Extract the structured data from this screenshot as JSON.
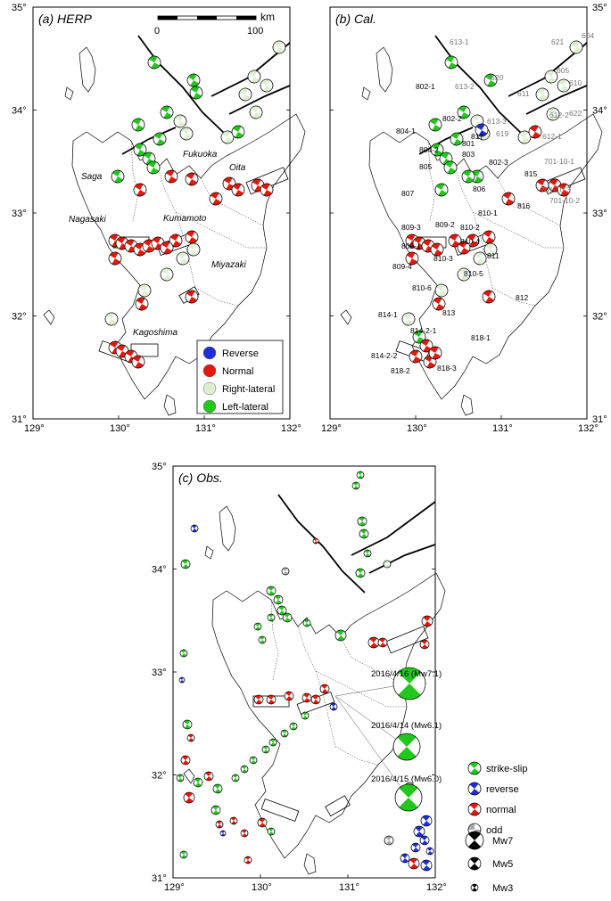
{
  "panels": {
    "a": {
      "title": "(a) HERP",
      "scale_bar": {
        "label_start": "0",
        "label_end": "100",
        "unit": "km"
      },
      "places": [
        "Fukuoka",
        "Oita",
        "Saga",
        "Nagasaki",
        "Kumamoto",
        "Miyazaki",
        "Kagoshima"
      ],
      "lat_labels": [
        "35°",
        "34°",
        "33°",
        "32°",
        "31°"
      ],
      "lon_labels": [
        "129°",
        "130°",
        "131°",
        "132°"
      ]
    },
    "b": {
      "title": "(b) Cal.",
      "lat_labels": [
        "35°",
        "34°",
        "33°",
        "32°",
        "31°"
      ],
      "lon_labels": [
        "129°",
        "130°",
        "131°",
        "132°"
      ],
      "event_ids_black": [
        "802-1",
        "802-2",
        "804-1",
        "804-2",
        "805",
        "803",
        "801",
        "817",
        "802-3",
        "806",
        "807",
        "815",
        "816",
        "809-3",
        "809-2",
        "810-2",
        "810-1",
        "809-1",
        "810-3",
        "810-4",
        "811",
        "809-4",
        "810-5",
        "810-6",
        "812",
        "813",
        "814-1",
        "814-2-1",
        "818-1",
        "814-2-2",
        "818-2",
        "818-3"
      ],
      "event_ids_grey": [
        "613-1",
        "621",
        "604",
        "613-2",
        "620",
        "605",
        "610",
        "611",
        "612-2",
        "622",
        "613-3",
        "619",
        "612-1",
        "701-10-1",
        "701-10-3",
        "701-10-2"
      ]
    },
    "c": {
      "title": "(c) Obs.",
      "lat_labels": [
        "35°",
        "34°",
        "33°",
        "32°",
        "31°"
      ],
      "lon_labels": [
        "129°",
        "130°",
        "131°",
        "132°"
      ],
      "quakes": [
        "2016/4/16 (Mw7.1)",
        "2016/4/14 (Mw6.1)",
        "2016/4/15 (Mw6.0)"
      ]
    }
  },
  "legend_ab": {
    "items": [
      {
        "label": "Reverse",
        "color": "#1f2fd6"
      },
      {
        "label": "Normal",
        "color": "#e3170a"
      },
      {
        "label": "Right-lateral",
        "color": "#dff0d2"
      },
      {
        "label": "Left-lateral",
        "color": "#22c61c"
      }
    ]
  },
  "legend_c": {
    "mechanisms": [
      {
        "label": "strike-slip",
        "color": "#22c61c",
        "icon": "strike-slip-beachball-icon"
      },
      {
        "label": "reverse",
        "color": "#1f2fd6",
        "icon": "reverse-beachball-icon"
      },
      {
        "label": "normal",
        "color": "#e3170a",
        "icon": "normal-beachball-icon"
      },
      {
        "label": "odd",
        "color": "#aaaaaa",
        "icon": "odd-beachball-icon"
      }
    ],
    "magnitudes": [
      "Mw7",
      "Mw5",
      "Mw3"
    ]
  }
}
